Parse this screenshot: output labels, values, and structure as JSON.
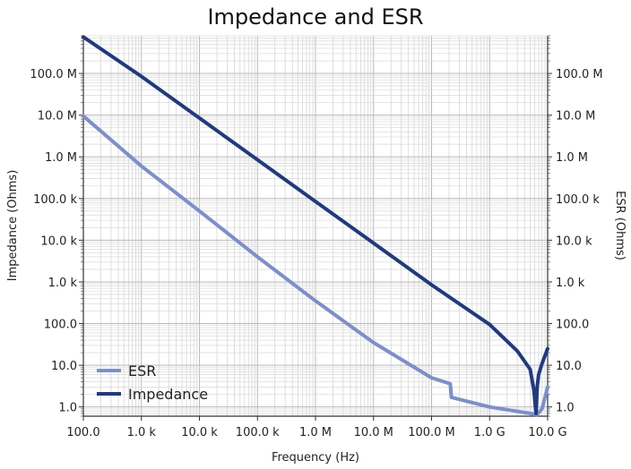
{
  "chart_data": {
    "type": "line",
    "title": "Impedance and ESR",
    "xlabel": "Frequency (Hz)",
    "ylabel": "Impedance (Ohms)",
    "ylabel_right": "ESR (Ohms)",
    "x_scale": "log",
    "y_scale": "log",
    "xlim": [
      100,
      10000000000
    ],
    "ylim": [
      0.6,
      800000000
    ],
    "x_ticks": [
      {
        "value": 100,
        "label": "100.0"
      },
      {
        "value": 1000,
        "label": "1.0 k"
      },
      {
        "value": 10000,
        "label": "10.0 k"
      },
      {
        "value": 100000,
        "label": "100.0 k"
      },
      {
        "value": 1000000,
        "label": "1.0 M"
      },
      {
        "value": 10000000,
        "label": "10.0 M"
      },
      {
        "value": 100000000,
        "label": "100.0 M"
      },
      {
        "value": 1000000000,
        "label": "1.0 G"
      },
      {
        "value": 10000000000,
        "label": "10.0 G"
      }
    ],
    "y_ticks": [
      {
        "value": 1,
        "label": "1.0"
      },
      {
        "value": 10,
        "label": "10.0"
      },
      {
        "value": 100,
        "label": "100.0"
      },
      {
        "value": 1000,
        "label": "1.0 k"
      },
      {
        "value": 10000,
        "label": "10.0 k"
      },
      {
        "value": 100000,
        "label": "100.0 k"
      },
      {
        "value": 1000000,
        "label": "1.0 M"
      },
      {
        "value": 10000000,
        "label": "10.0 M"
      },
      {
        "value": 100000000,
        "label": "100.0 M"
      }
    ],
    "grid": true,
    "legend_position": "bottom-left",
    "series": [
      {
        "name": "ESR",
        "color": "#7b8fcc",
        "x": [
          100,
          1000,
          10000,
          100000,
          1000000,
          10000000,
          100000000,
          210000000,
          220000000,
          1000000000,
          5000000000,
          6500000000,
          8000000000,
          10000000000
        ],
        "y": [
          9500000,
          600000,
          50000,
          4000,
          350,
          35,
          5,
          3.6,
          1.7,
          1.0,
          0.7,
          0.65,
          0.9,
          3
        ]
      },
      {
        "name": "Impedance",
        "color": "#1f3a80",
        "x": [
          100,
          1000,
          10000,
          100000,
          1000000,
          10000000,
          100000000,
          1000000000,
          3000000000,
          5000000000,
          5800000000,
          6300000000,
          6600000000,
          7000000000,
          8000000000,
          9000000000,
          10000000000
        ],
        "y": [
          750000000,
          85000000,
          8500000,
          850000,
          85000,
          8500,
          850,
          95,
          22,
          8,
          2.5,
          0.7,
          3,
          6,
          11,
          17,
          25
        ]
      }
    ]
  }
}
